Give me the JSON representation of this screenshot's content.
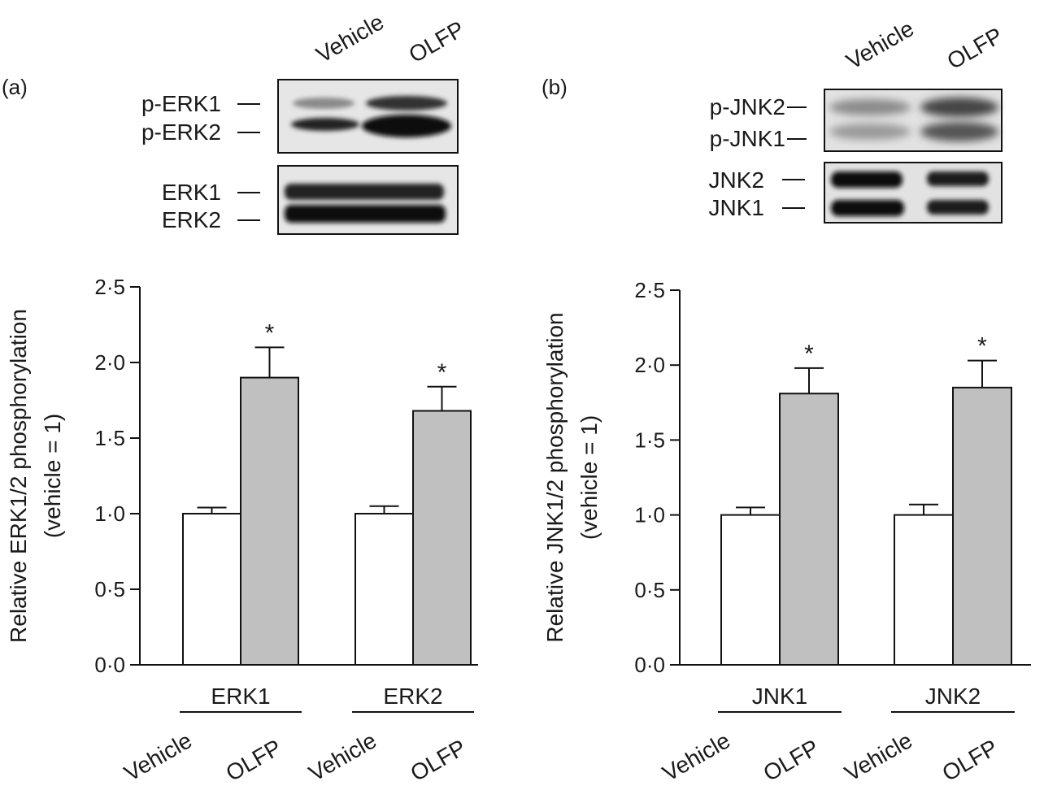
{
  "panels": [
    {
      "panel_label": "(a)",
      "blot": {
        "lanes": [
          "Vehicle",
          "OLFP"
        ],
        "upper_labels": [
          "p-ERK1",
          "p-ERK2"
        ],
        "lower_labels": [
          "ERK1",
          "ERK2"
        ]
      },
      "group_lane_labels": [
        "Vehicle",
        "OLFP"
      ],
      "significance_marker": "*"
    },
    {
      "panel_label": "(b)",
      "blot": {
        "lanes": [
          "Vehicle",
          "OLFP"
        ],
        "upper_labels": [
          "p-JNK2",
          "p-JNK1"
        ],
        "lower_labels": [
          "JNK2",
          "JNK1"
        ]
      },
      "group_lane_labels": [
        "Vehicle",
        "OLFP"
      ],
      "significance_marker": "*"
    }
  ],
  "chart_data": [
    {
      "type": "bar",
      "categories": [
        "ERK1",
        "ERK2"
      ],
      "series": [
        {
          "name": "Vehicle",
          "values": [
            1.0,
            1.0
          ],
          "errors": [
            0.04,
            0.05
          ],
          "color": "#ffffff"
        },
        {
          "name": "OLFP",
          "values": [
            1.9,
            1.68
          ],
          "errors": [
            0.2,
            0.16
          ],
          "color": "#c0c0c0"
        }
      ],
      "significant": [
        [
          false,
          false
        ],
        [
          true,
          true
        ]
      ],
      "ylabel": "Relative ERK1/2 phosphorylation (vehicle = 1)",
      "ylabel_lines": [
        "Relative ERK1/2 phosphorylation",
        "(vehicle = 1)"
      ],
      "yticks": [
        "0·0",
        "0·5",
        "1·0",
        "1·5",
        "2·0",
        "2·5"
      ],
      "ylim": [
        0,
        2.5
      ],
      "grid": false
    },
    {
      "type": "bar",
      "categories": [
        "JNK1",
        "JNK2"
      ],
      "series": [
        {
          "name": "Vehicle",
          "values": [
            1.0,
            1.0
          ],
          "errors": [
            0.05,
            0.07
          ],
          "color": "#ffffff"
        },
        {
          "name": "OLFP",
          "values": [
            1.81,
            1.85
          ],
          "errors": [
            0.17,
            0.18
          ],
          "color": "#c0c0c0"
        }
      ],
      "significant": [
        [
          false,
          false
        ],
        [
          true,
          true
        ]
      ],
      "ylabel": "Relative JNK1/2 phosphorylation (vehicle = 1)",
      "ylabel_lines": [
        "Relative JNK1/2 phosphorylation",
        "(vehicle = 1)"
      ],
      "yticks": [
        "0·0",
        "0·5",
        "1·0",
        "1·5",
        "2·0",
        "2·5"
      ],
      "ylim": [
        0,
        2.5
      ],
      "grid": false
    }
  ]
}
